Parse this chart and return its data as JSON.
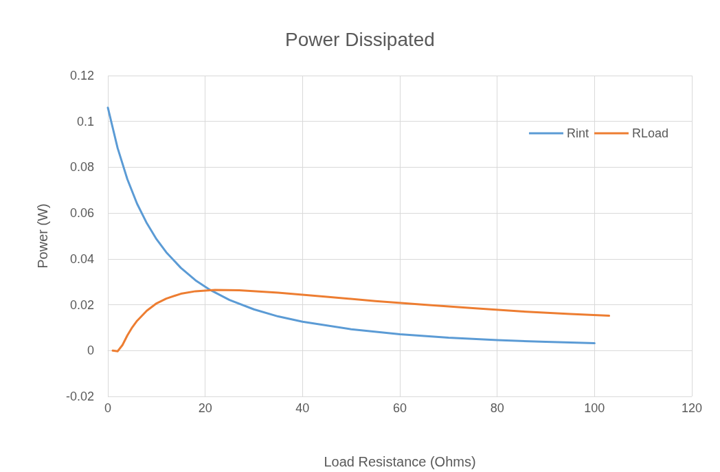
{
  "chart_data": {
    "type": "line",
    "title": "Power Dissipated",
    "xlabel": "Load Resistance (Ohms)",
    "ylabel": "Power (W)",
    "xlim": [
      0,
      120
    ],
    "xticks": [
      0,
      20,
      40,
      60,
      80,
      100,
      120
    ],
    "ylim": [
      -0.02,
      0.12
    ],
    "yticks": [
      -0.02,
      0,
      0.02,
      0.04,
      0.06,
      0.08,
      0.1,
      0.12
    ],
    "grid": true,
    "legend": "top right",
    "marker": "none",
    "line_style": "solid",
    "series": [
      {
        "name": "Rint",
        "color": "#5b9bd5",
        "x": [
          0,
          2,
          4,
          6,
          8,
          10,
          12,
          15,
          18,
          21,
          25,
          30,
          35,
          40,
          50,
          60,
          70,
          80,
          90,
          100
        ],
        "values": [
          0.106,
          0.0884,
          0.0748,
          0.0641,
          0.0556,
          0.0486,
          0.0429,
          0.0361,
          0.0307,
          0.0265,
          0.0221,
          0.018,
          0.0149,
          0.0126,
          0.0093,
          0.0071,
          0.0056,
          0.0046,
          0.0038,
          0.0032
        ]
      },
      {
        "name": "RLoad",
        "color": "#ed7d31",
        "x": [
          1,
          2,
          3,
          4,
          5,
          6,
          8,
          10,
          12,
          15,
          18,
          22,
          27,
          35,
          45,
          55,
          65,
          75,
          85,
          95,
          103
        ],
        "values": [
          0,
          -0.0003,
          0.0024,
          0.0066,
          0.0101,
          0.013,
          0.0174,
          0.0206,
          0.0227,
          0.0248,
          0.0259,
          0.0265,
          0.0263,
          0.0253,
          0.0235,
          0.0216,
          0.02,
          0.0185,
          0.0171,
          0.016,
          0.0152
        ]
      }
    ]
  }
}
